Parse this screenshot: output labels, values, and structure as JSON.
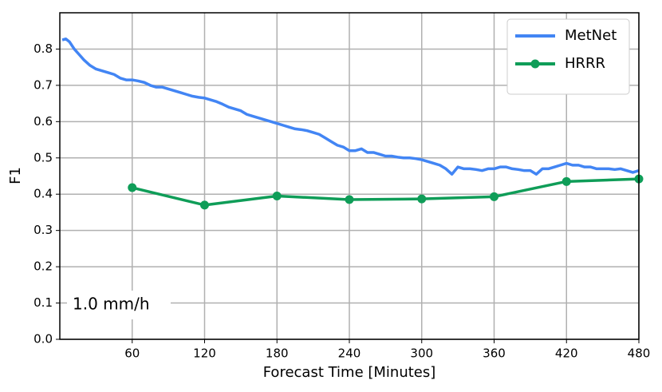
{
  "chart_data": {
    "type": "line",
    "xlabel": "Forecast Time [Minutes]",
    "ylabel": "F1",
    "annotation": "1.0 mm/h",
    "xlim": [
      0,
      480
    ],
    "xticks": [
      60,
      120,
      180,
      240,
      300,
      360,
      420,
      480
    ],
    "ylim": [
      0,
      0.9
    ],
    "yticks": [
      {
        "value": 0,
        "label": "0.0"
      },
      0.1,
      0.2,
      0.3,
      0.4,
      0.5,
      0.6,
      0.7,
      0.8
    ],
    "grid": true,
    "legend": "upper right",
    "series": [
      {
        "name": "MetNet",
        "color": "#4285f4",
        "markers": false,
        "x": [
          2,
          5,
          8,
          12,
          16,
          20,
          25,
          30,
          35,
          40,
          45,
          50,
          55,
          60,
          65,
          70,
          75,
          80,
          85,
          90,
          95,
          100,
          105,
          110,
          115,
          120,
          125,
          130,
          135,
          140,
          145,
          150,
          155,
          160,
          165,
          170,
          175,
          180,
          185,
          190,
          195,
          200,
          205,
          210,
          215,
          220,
          225,
          230,
          235,
          240,
          245,
          250,
          255,
          260,
          265,
          270,
          275,
          280,
          285,
          290,
          295,
          300,
          305,
          310,
          315,
          320,
          325,
          330,
          335,
          340,
          345,
          350,
          355,
          360,
          365,
          370,
          375,
          380,
          385,
          390,
          395,
          400,
          405,
          410,
          415,
          420,
          425,
          430,
          435,
          440,
          445,
          450,
          455,
          460,
          465,
          470,
          475,
          480
        ],
        "values": [
          0.825,
          0.828,
          0.82,
          0.8,
          0.785,
          0.77,
          0.755,
          0.745,
          0.74,
          0.735,
          0.73,
          0.72,
          0.715,
          0.715,
          0.712,
          0.708,
          0.7,
          0.695,
          0.695,
          0.69,
          0.685,
          0.68,
          0.675,
          0.67,
          0.667,
          0.665,
          0.66,
          0.655,
          0.648,
          0.64,
          0.635,
          0.63,
          0.62,
          0.615,
          0.61,
          0.605,
          0.6,
          0.595,
          0.59,
          0.585,
          0.58,
          0.578,
          0.575,
          0.57,
          0.565,
          0.555,
          0.545,
          0.535,
          0.53,
          0.52,
          0.52,
          0.525,
          0.515,
          0.515,
          0.51,
          0.505,
          0.505,
          0.502,
          0.5,
          0.5,
          0.498,
          0.495,
          0.49,
          0.485,
          0.48,
          0.47,
          0.455,
          0.475,
          0.47,
          0.47,
          0.468,
          0.465,
          0.47,
          0.47,
          0.475,
          0.475,
          0.47,
          0.468,
          0.465,
          0.465,
          0.455,
          0.47,
          0.47,
          0.475,
          0.48,
          0.485,
          0.48,
          0.48,
          0.475,
          0.475,
          0.47,
          0.47,
          0.47,
          0.468,
          0.47,
          0.465,
          0.46,
          0.465
        ]
      },
      {
        "name": "HRRR",
        "color": "#0f9d58",
        "markers": true,
        "x": [
          60,
          120,
          180,
          240,
          300,
          360,
          420,
          480
        ],
        "values": [
          0.418,
          0.37,
          0.395,
          0.385,
          0.387,
          0.393,
          0.435,
          0.442
        ]
      }
    ]
  }
}
